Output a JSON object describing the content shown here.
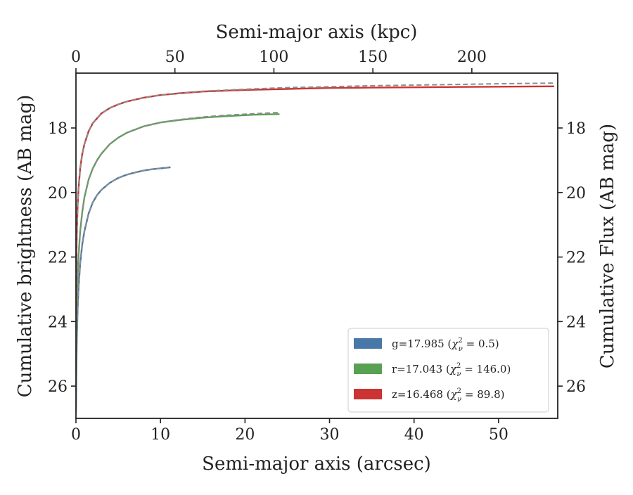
{
  "chart_data": {
    "type": "line",
    "xlabel": "Semi-major axis (arcsec)",
    "x2label": "Semi-major axis (kpc)",
    "ylabel": "Cumulative brightness (AB mag)",
    "y2label": "Cumulative Flux (AB mag)",
    "xlim": [
      0,
      57
    ],
    "x2lim": [
      0,
      243.4
    ],
    "ylim": [
      27.0,
      16.3
    ],
    "y_inverted": true,
    "xticks": [
      0,
      10,
      20,
      30,
      40,
      50
    ],
    "x2ticks": [
      0,
      50,
      100,
      150,
      200
    ],
    "yticks": [
      18,
      20,
      22,
      24,
      26
    ],
    "grid": false,
    "legend_position": "lower-right",
    "series": [
      {
        "name": "g=17.985 (χν² = 0.5)",
        "label_main": "g=17.985 (",
        "label_sym": "χ",
        "label_sup": "2",
        "label_sub": "ν",
        "label_tail": " = 0.5)",
        "color": "#4878a8",
        "x": [
          0.0,
          0.05,
          0.1,
          0.2,
          0.3,
          0.5,
          0.75,
          1.0,
          1.5,
          2.0,
          2.5,
          3.0,
          4.0,
          5.0,
          6.0,
          7.0,
          8.0,
          9.0,
          10.0,
          11.1
        ],
        "y": [
          26.8,
          25.5,
          24.6,
          23.6,
          23.0,
          22.2,
          21.6,
          21.2,
          20.65,
          20.3,
          20.08,
          19.92,
          19.7,
          19.55,
          19.45,
          19.38,
          19.32,
          19.28,
          19.25,
          19.22
        ],
        "model_y": [
          26.8,
          25.5,
          24.6,
          23.6,
          23.0,
          22.2,
          21.6,
          21.2,
          20.65,
          20.3,
          20.08,
          19.92,
          19.7,
          19.55,
          19.45,
          19.38,
          19.32,
          19.28,
          19.25,
          19.22
        ]
      },
      {
        "name": "r=17.043 (χν² = 146.0)",
        "label_main": "r=17.043 (",
        "label_sym": "χ",
        "label_sup": "2",
        "label_sub": "ν",
        "label_tail": " = 146.0)",
        "color": "#58a052",
        "x": [
          0.0,
          0.05,
          0.1,
          0.2,
          0.3,
          0.5,
          0.75,
          1.0,
          1.5,
          2.0,
          2.5,
          3.0,
          4.0,
          5.0,
          6.0,
          8.0,
          10.0,
          12.0,
          15.0,
          18.0,
          21.0,
          24.0
        ],
        "y": [
          26.0,
          24.5,
          23.6,
          22.6,
          22.0,
          21.2,
          20.6,
          20.15,
          19.6,
          19.25,
          19.0,
          18.8,
          18.5,
          18.3,
          18.15,
          17.95,
          17.83,
          17.76,
          17.68,
          17.63,
          17.59,
          17.57
        ],
        "model_y": [
          26.0,
          24.5,
          23.6,
          22.6,
          22.0,
          21.2,
          20.6,
          20.15,
          19.6,
          19.25,
          19.0,
          18.8,
          18.5,
          18.3,
          18.15,
          17.95,
          17.83,
          17.75,
          17.66,
          17.6,
          17.56,
          17.52
        ]
      },
      {
        "name": "z=16.468 (χν² = 89.8)",
        "label_main": "z=16.468 (",
        "label_sym": "χ",
        "label_sup": "2",
        "label_sub": "ν",
        "label_tail": " = 89.8)",
        "color": "#cc3333",
        "x": [
          0.0,
          0.05,
          0.1,
          0.2,
          0.3,
          0.5,
          0.75,
          1.0,
          1.5,
          2.0,
          3.0,
          4.0,
          5.0,
          6.0,
          8.0,
          10.0,
          12.0,
          15.0,
          20.0,
          25.0,
          30.0,
          35.0,
          40.0,
          45.0,
          50.0,
          56.5
        ],
        "y": [
          23.8,
          22.2,
          21.3,
          20.4,
          19.9,
          19.25,
          18.8,
          18.5,
          18.1,
          17.85,
          17.55,
          17.38,
          17.27,
          17.18,
          17.06,
          16.98,
          16.93,
          16.87,
          16.82,
          16.79,
          16.76,
          16.75,
          16.74,
          16.73,
          16.72,
          16.71
        ],
        "model_y": [
          23.8,
          22.2,
          21.3,
          20.4,
          19.9,
          19.25,
          18.8,
          18.5,
          18.1,
          17.85,
          17.55,
          17.38,
          17.27,
          17.18,
          17.06,
          16.98,
          16.92,
          16.86,
          16.8,
          16.75,
          16.72,
          16.69,
          16.67,
          16.65,
          16.63,
          16.61
        ]
      }
    ]
  }
}
